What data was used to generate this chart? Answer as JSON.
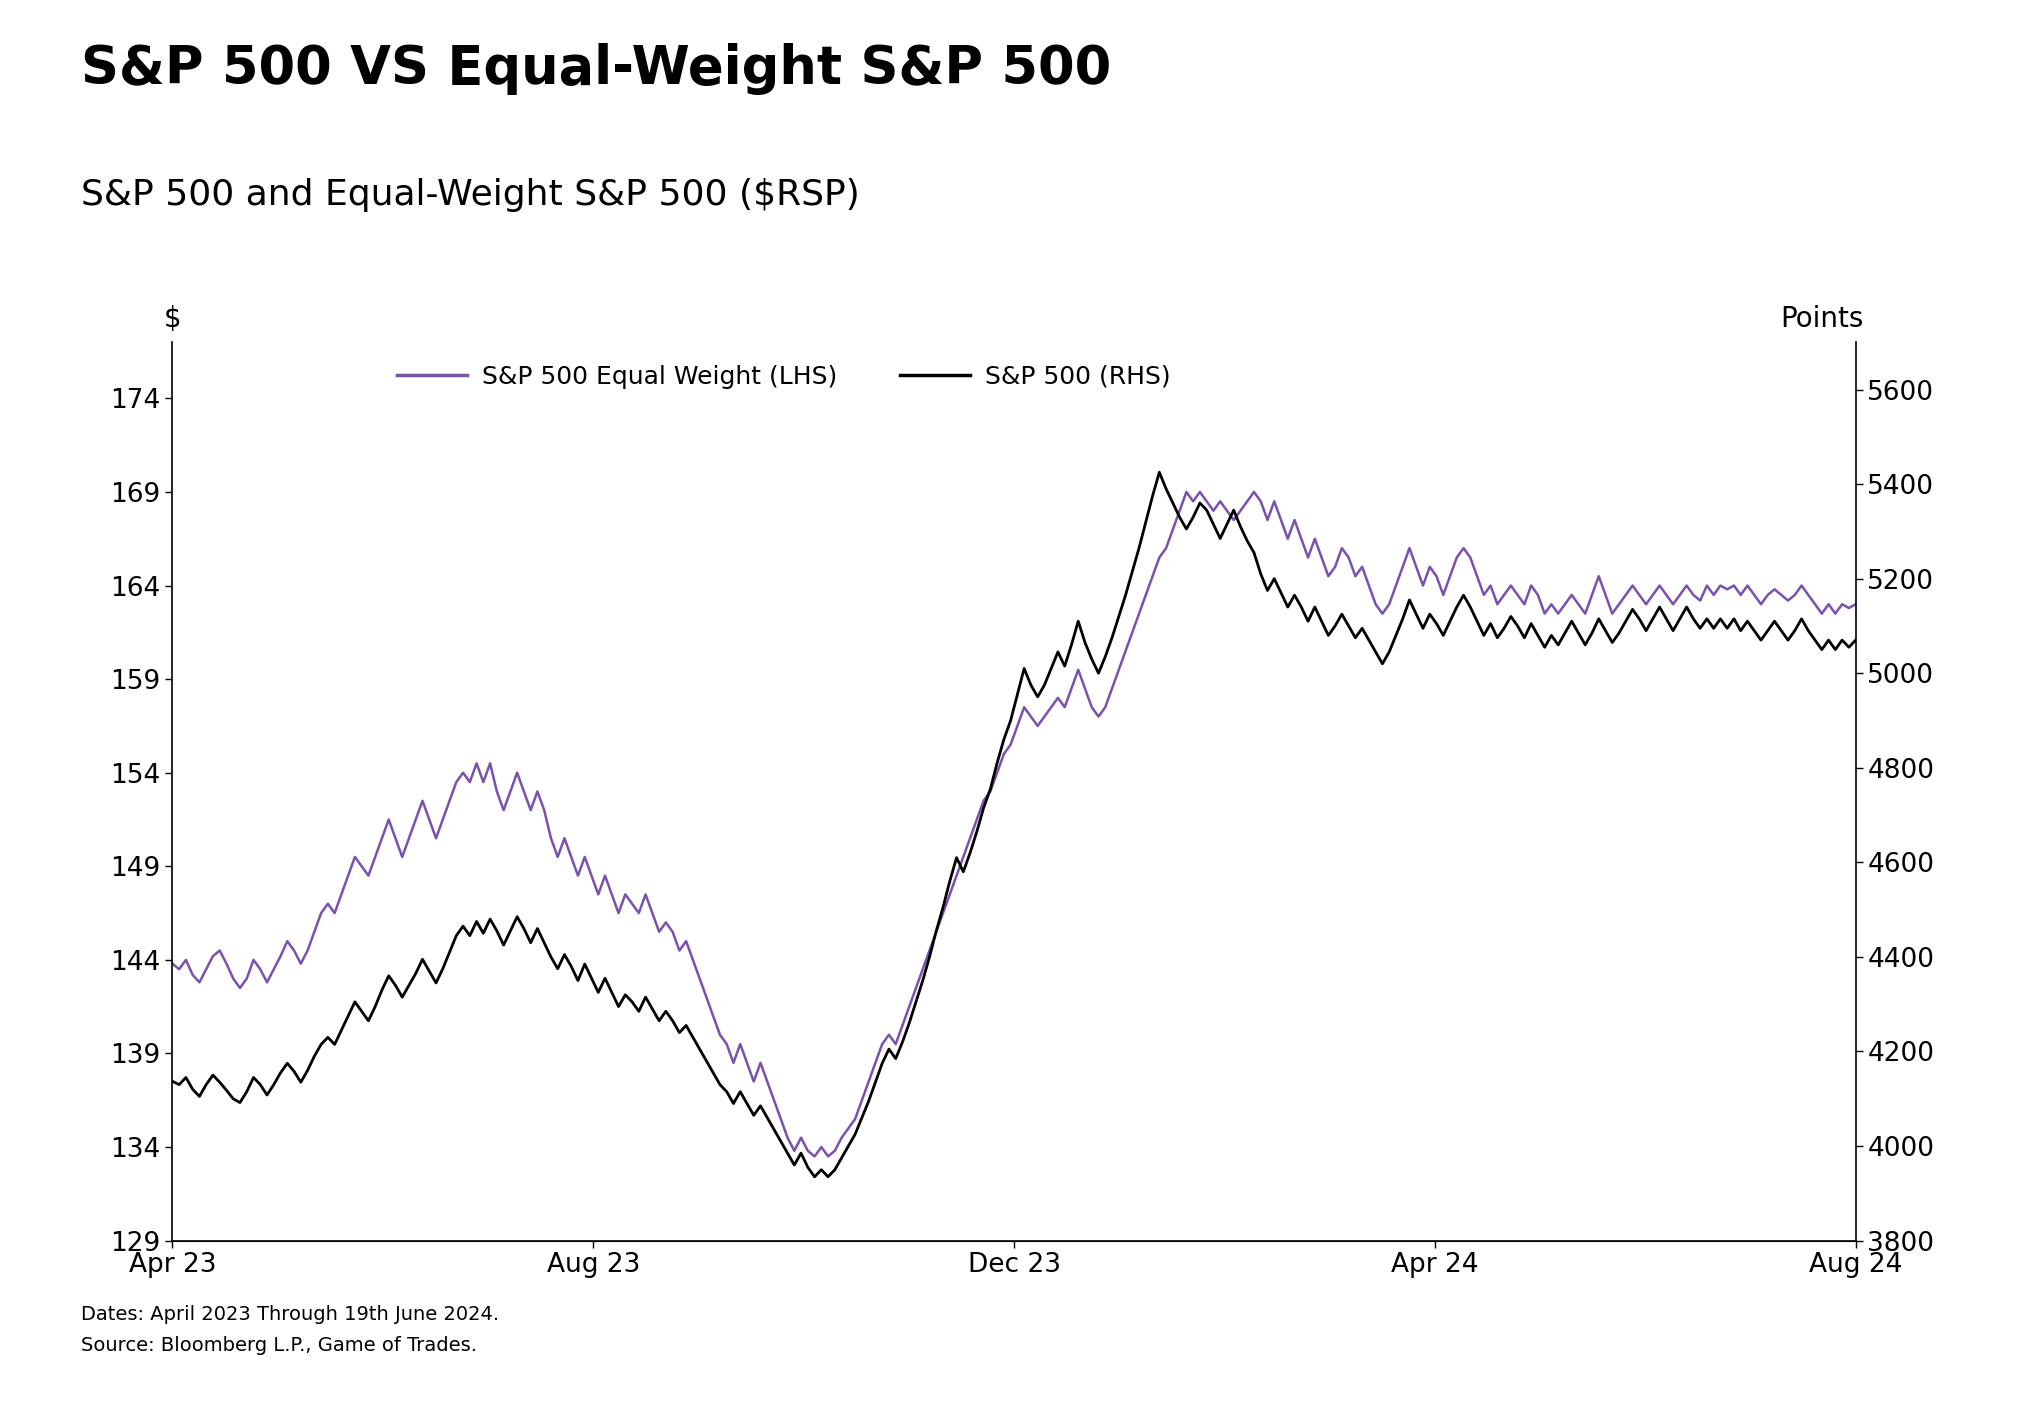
{
  "title": "S&P 500 VS Equal-Weight S&P 500",
  "subtitle": "S&P 500 and Equal-Weight S&P 500 ($RSP)",
  "title_fontsize": 38,
  "subtitle_fontsize": 26,
  "left_ylabel": "$",
  "right_ylabel": "Points",
  "lhs_label": "S&P 500 Equal Weight (LHS)",
  "rhs_label": "S&P 500 (RHS)",
  "lhs_color": "#7B52AB",
  "rhs_color": "#000000",
  "lhs_ylim": [
    129,
    177
  ],
  "rhs_ylim": [
    3800,
    5700
  ],
  "lhs_yticks": [
    129,
    134,
    139,
    144,
    149,
    154,
    159,
    164,
    169,
    174
  ],
  "rhs_yticks": [
    3800,
    4000,
    4200,
    4400,
    4600,
    4800,
    5000,
    5200,
    5400,
    5600
  ],
  "xtick_labels": [
    "Apr 23",
    "Aug 23",
    "Dec 23",
    "Apr 24",
    "Aug 24"
  ],
  "footnote1": "Dates: April 2023 Through 19th June 2024.",
  "footnote2": "Source: Bloomberg L.P., Game of Trades.",
  "background_color": "#FFFFFF",
  "lhs_data": [
    143.8,
    143.5,
    144.0,
    143.2,
    142.8,
    143.5,
    144.2,
    144.5,
    143.8,
    143.0,
    142.5,
    143.0,
    144.0,
    143.5,
    142.8,
    143.5,
    144.2,
    145.0,
    144.5,
    143.8,
    144.5,
    145.5,
    146.5,
    147.0,
    146.5,
    147.5,
    148.5,
    149.5,
    149.0,
    148.5,
    149.5,
    150.5,
    151.5,
    150.5,
    149.5,
    150.5,
    151.5,
    152.5,
    151.5,
    150.5,
    151.5,
    152.5,
    153.5,
    154.0,
    153.5,
    154.5,
    153.5,
    154.5,
    153.0,
    152.0,
    153.0,
    154.0,
    153.0,
    152.0,
    153.0,
    152.0,
    150.5,
    149.5,
    150.5,
    149.5,
    148.5,
    149.5,
    148.5,
    147.5,
    148.5,
    147.5,
    146.5,
    147.5,
    147.0,
    146.5,
    147.5,
    146.5,
    145.5,
    146.0,
    145.5,
    144.5,
    145.0,
    144.0,
    143.0,
    142.0,
    141.0,
    140.0,
    139.5,
    138.5,
    139.5,
    138.5,
    137.5,
    138.5,
    137.5,
    136.5,
    135.5,
    134.5,
    133.8,
    134.5,
    133.8,
    133.5,
    134.0,
    133.5,
    133.8,
    134.5,
    135.0,
    135.5,
    136.5,
    137.5,
    138.5,
    139.5,
    140.0,
    139.5,
    140.5,
    141.5,
    142.5,
    143.5,
    144.5,
    145.5,
    146.5,
    147.5,
    148.5,
    149.5,
    150.5,
    151.5,
    152.5,
    153.0,
    154.0,
    155.0,
    155.5,
    156.5,
    157.5,
    157.0,
    156.5,
    157.0,
    157.5,
    158.0,
    157.5,
    158.5,
    159.5,
    158.5,
    157.5,
    157.0,
    157.5,
    158.5,
    159.5,
    160.5,
    161.5,
    162.5,
    163.5,
    164.5,
    165.5,
    166.0,
    167.0,
    168.0,
    169.0,
    168.5,
    169.0,
    168.5,
    168.0,
    168.5,
    168.0,
    167.5,
    168.0,
    168.5,
    169.0,
    168.5,
    167.5,
    168.5,
    167.5,
    166.5,
    167.5,
    166.5,
    165.5,
    166.5,
    165.5,
    164.5,
    165.0,
    166.0,
    165.5,
    164.5,
    165.0,
    164.0,
    163.0,
    162.5,
    163.0,
    164.0,
    165.0,
    166.0,
    165.0,
    164.0,
    165.0,
    164.5,
    163.5,
    164.5,
    165.5,
    166.0,
    165.5,
    164.5,
    163.5,
    164.0,
    163.0,
    163.5,
    164.0,
    163.5,
    163.0,
    164.0,
    163.5,
    162.5,
    163.0,
    162.5,
    163.0,
    163.5,
    163.0,
    162.5,
    163.5,
    164.5,
    163.5,
    162.5,
    163.0,
    163.5,
    164.0,
    163.5,
    163.0,
    163.5,
    164.0,
    163.5,
    163.0,
    163.5,
    164.0,
    163.5,
    163.2,
    164.0,
    163.5,
    164.0,
    163.8,
    164.0,
    163.5,
    164.0,
    163.5,
    163.0,
    163.5,
    163.8,
    163.5,
    163.2,
    163.5,
    164.0,
    163.5,
    163.0,
    162.5,
    163.0,
    162.5,
    163.0,
    162.8,
    163.0
  ],
  "rhs_data": [
    4137,
    4130,
    4145,
    4120,
    4105,
    4130,
    4150,
    4135,
    4118,
    4100,
    4092,
    4115,
    4145,
    4130,
    4108,
    4130,
    4155,
    4175,
    4158,
    4135,
    4160,
    4190,
    4215,
    4230,
    4215,
    4245,
    4275,
    4305,
    4285,
    4265,
    4295,
    4330,
    4360,
    4340,
    4315,
    4340,
    4365,
    4395,
    4370,
    4345,
    4375,
    4410,
    4445,
    4465,
    4445,
    4475,
    4450,
    4480,
    4455,
    4425,
    4455,
    4485,
    4460,
    4430,
    4460,
    4430,
    4400,
    4375,
    4405,
    4380,
    4350,
    4385,
    4355,
    4325,
    4355,
    4325,
    4295,
    4320,
    4305,
    4285,
    4315,
    4290,
    4265,
    4285,
    4265,
    4240,
    4255,
    4230,
    4205,
    4180,
    4155,
    4130,
    4115,
    4090,
    4115,
    4090,
    4065,
    4085,
    4060,
    4035,
    4010,
    3985,
    3960,
    3985,
    3955,
    3935,
    3950,
    3935,
    3950,
    3975,
    4000,
    4025,
    4060,
    4095,
    4135,
    4175,
    4205,
    4185,
    4220,
    4260,
    4305,
    4350,
    4400,
    4455,
    4505,
    4560,
    4610,
    4580,
    4620,
    4665,
    4715,
    4755,
    4810,
    4860,
    4900,
    4955,
    5010,
    4975,
    4950,
    4975,
    5010,
    5045,
    5015,
    5060,
    5110,
    5065,
    5030,
    5000,
    5035,
    5075,
    5120,
    5165,
    5215,
    5265,
    5320,
    5375,
    5425,
    5390,
    5360,
    5330,
    5305,
    5330,
    5360,
    5345,
    5315,
    5285,
    5315,
    5345,
    5310,
    5280,
    5255,
    5210,
    5175,
    5200,
    5170,
    5140,
    5165,
    5140,
    5110,
    5140,
    5110,
    5080,
    5100,
    5125,
    5100,
    5075,
    5095,
    5070,
    5045,
    5020,
    5045,
    5080,
    5115,
    5155,
    5125,
    5095,
    5125,
    5105,
    5080,
    5110,
    5140,
    5165,
    5140,
    5110,
    5080,
    5105,
    5075,
    5095,
    5120,
    5100,
    5075,
    5105,
    5080,
    5055,
    5080,
    5060,
    5085,
    5110,
    5085,
    5060,
    5085,
    5115,
    5090,
    5065,
    5085,
    5110,
    5135,
    5115,
    5090,
    5115,
    5140,
    5115,
    5090,
    5115,
    5140,
    5115,
    5095,
    5115,
    5095,
    5115,
    5095,
    5115,
    5090,
    5110,
    5090,
    5070,
    5090,
    5110,
    5090,
    5070,
    5090,
    5115,
    5090,
    5070,
    5050,
    5070,
    5050,
    5070,
    5055,
    5070
  ]
}
